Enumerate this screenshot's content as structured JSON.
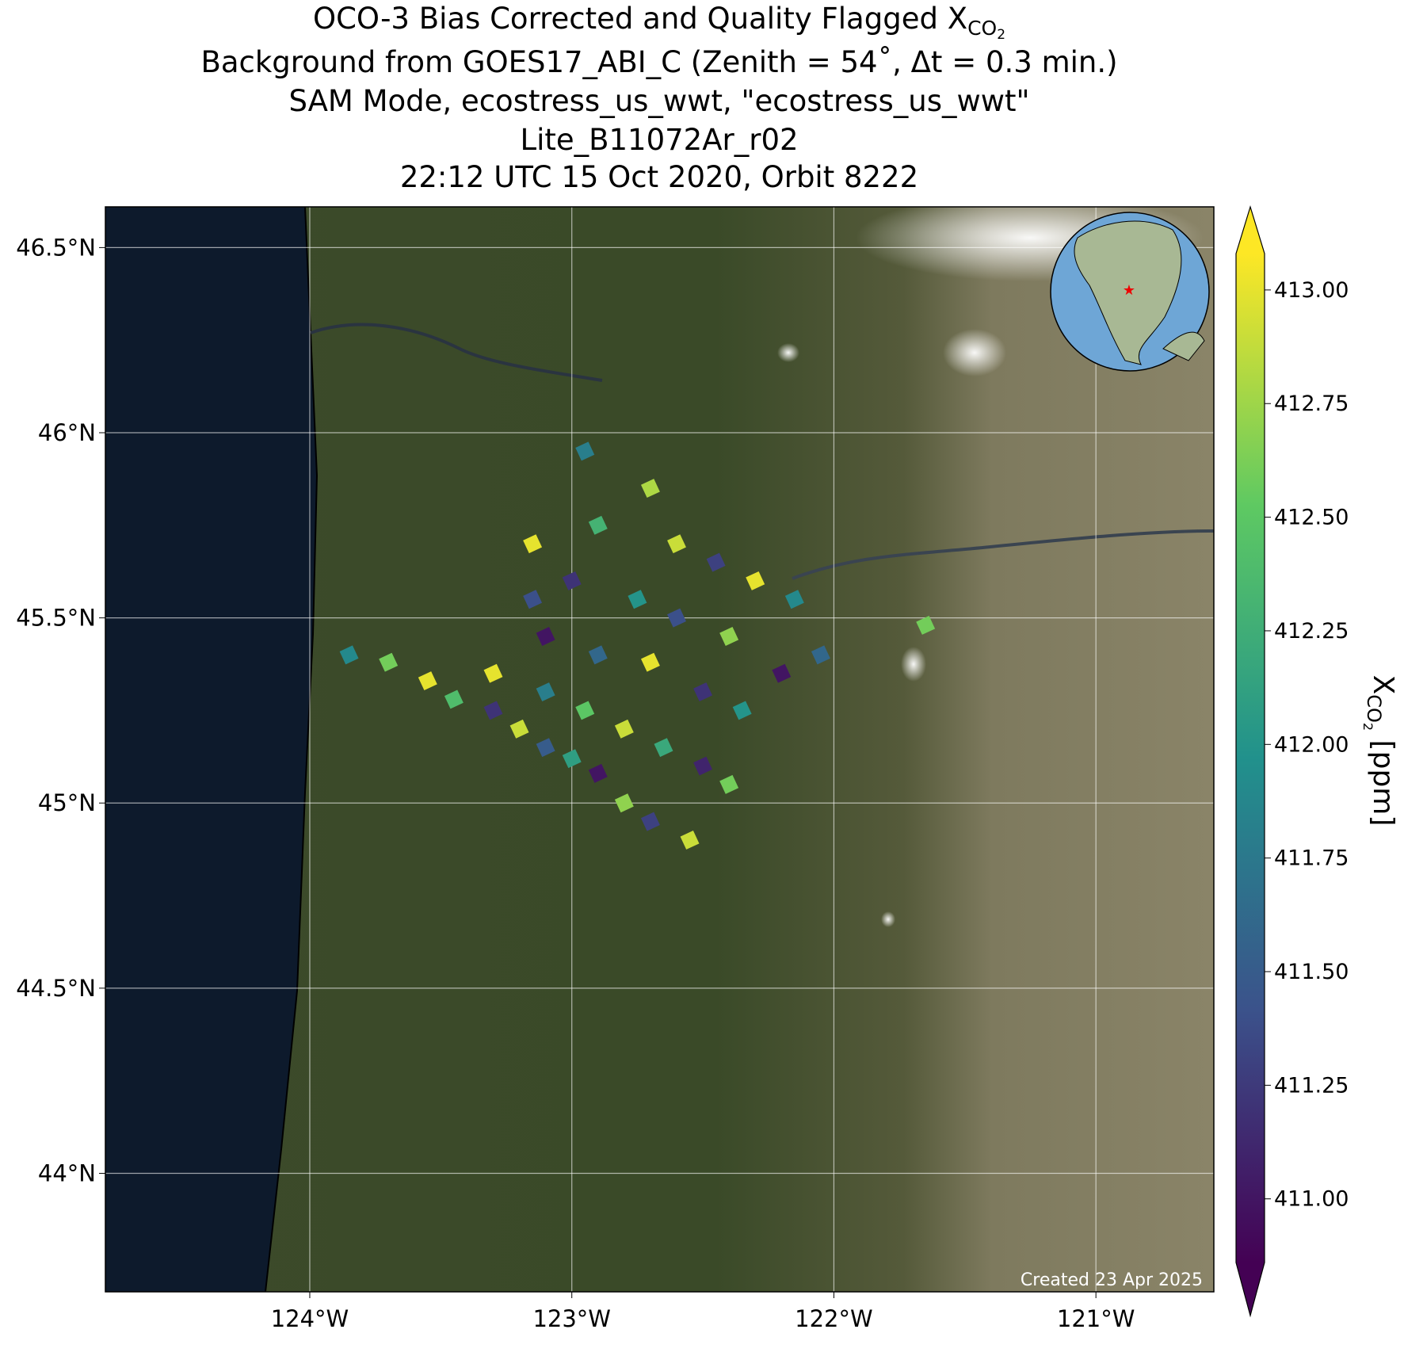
{
  "chart_data": {
    "type": "map",
    "title_lines": [
      {
        "text": "OCO-3 Bias Corrected and Quality Flagged X",
        "sub": "CO",
        "subsub": "2"
      },
      {
        "text": "Background from GOES17_ABI_C (Zenith = 54$^\\circ$, Δt =  0.3 min.)"
      },
      {
        "text": "SAM Mode, ecostress_us_wwt, \"ecostress_us_wwt\""
      },
      {
        "text": "Lite_B11072Ar_r02"
      },
      {
        "text": "22:12 UTC 15 Oct 2020, Orbit 8222"
      }
    ],
    "xlim": [
      -124.78,
      -120.55
    ],
    "ylim": [
      43.68,
      46.61
    ],
    "xticks": [
      {
        "value": -124,
        "label": "124°W"
      },
      {
        "value": -123,
        "label": "123°W"
      },
      {
        "value": -122,
        "label": "122°W"
      },
      {
        "value": -121,
        "label": "121°W"
      }
    ],
    "yticks": [
      {
        "value": 44,
        "label": "44°N"
      },
      {
        "value": 44.5,
        "label": "44.5°N"
      },
      {
        "value": 45,
        "label": "45°N"
      },
      {
        "value": 45.5,
        "label": "45.5°N"
      },
      {
        "value": 46,
        "label": "46°N"
      },
      {
        "value": 46.5,
        "label": "46.5°N"
      }
    ],
    "grid": true,
    "colormap": "viridis",
    "clim": [
      410.86,
      413.08
    ],
    "cticks": [
      {
        "value": 411,
        "label": "411.00"
      },
      {
        "value": 411.25,
        "label": "411.25"
      },
      {
        "value": 411.5,
        "label": "411.50"
      },
      {
        "value": 411.75,
        "label": "411.75"
      },
      {
        "value": 412,
        "label": "412.00"
      },
      {
        "value": 412.25,
        "label": "412.25"
      },
      {
        "value": 412.5,
        "label": "412.50"
      },
      {
        "value": 412.75,
        "label": "412.75"
      },
      {
        "value": 413,
        "label": "413.00"
      }
    ],
    "colorbar_label": {
      "text": "X",
      "sub": "CO",
      "subsub": "2",
      "unit": " [ppm]"
    },
    "annotation": "Created 23 Apr 2025",
    "soundings": {
      "lon": [
        -123.85,
        -123.7,
        -123.55,
        -123.45,
        -123.3,
        -123.2,
        -123.1,
        -123.0,
        -122.9,
        -122.8,
        -122.7,
        -122.55,
        -123.3,
        -123.1,
        -122.95,
        -122.8,
        -122.65,
        -122.5,
        -122.4,
        -123.1,
        -122.9,
        -122.7,
        -122.5,
        -122.35,
        -122.2,
        -123.15,
        -123.15,
        -123.0,
        -122.9,
        -122.95,
        -122.7,
        -122.6,
        -122.45,
        -122.3,
        -122.15,
        -122.75,
        -122.6,
        -122.4,
        -122.05,
        -121.65
      ],
      "lat": [
        45.4,
        45.38,
        45.33,
        45.28,
        45.25,
        45.2,
        45.15,
        45.12,
        45.08,
        45.0,
        44.95,
        44.9,
        45.35,
        45.3,
        45.25,
        45.2,
        45.15,
        45.1,
        45.05,
        45.45,
        45.4,
        45.38,
        45.3,
        45.25,
        45.35,
        45.55,
        45.7,
        45.6,
        45.75,
        45.95,
        45.85,
        45.7,
        45.65,
        45.6,
        45.55,
        45.55,
        45.5,
        45.45,
        45.4,
        45.48
      ],
      "xco2": [
        411.9,
        412.6,
        413.0,
        412.4,
        411.2,
        412.9,
        411.5,
        412.1,
        411.0,
        412.7,
        411.3,
        412.9,
        413.0,
        411.8,
        412.5,
        412.9,
        412.2,
        411.1,
        412.6,
        411.0,
        411.6,
        413.0,
        411.2,
        412.0,
        411.0,
        411.4,
        413.0,
        411.2,
        412.3,
        411.8,
        412.8,
        412.9,
        411.3,
        413.0,
        411.9,
        412.0,
        411.4,
        412.7,
        411.6,
        412.6
      ]
    }
  }
}
